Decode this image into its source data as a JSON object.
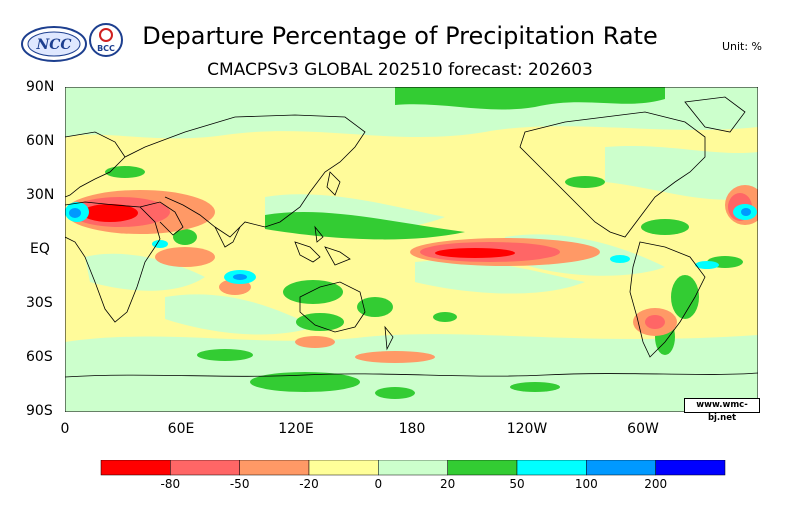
{
  "header": {
    "title": "Departure Percentage of Precipitation Rate",
    "subtitle": "CMACPSv3 GLOBAL 202510 forecast: 202603",
    "unit": "Unit: %",
    "logo_left_text": "NCC",
    "logo_right_text": "BCC"
  },
  "map": {
    "lat_labels": [
      "90N",
      "60N",
      "30N",
      "EQ",
      "30S",
      "60S",
      "90S"
    ],
    "lon_labels": [
      "0",
      "60E",
      "120E",
      "180",
      "120W",
      "60W"
    ],
    "credit": "www.wmc-bj.net",
    "ocean_color": "#fffb9a"
  },
  "colorbar": {
    "colors": [
      "#ff0000",
      "#ff6666",
      "#ff9966",
      "#ffff99",
      "#ccffcc",
      "#33cc33",
      "#00ffff",
      "#0099ff",
      "#0000ff"
    ],
    "labels": [
      "-80",
      "-50",
      "-20",
      "0",
      "20",
      "50",
      "100",
      "200"
    ]
  }
}
